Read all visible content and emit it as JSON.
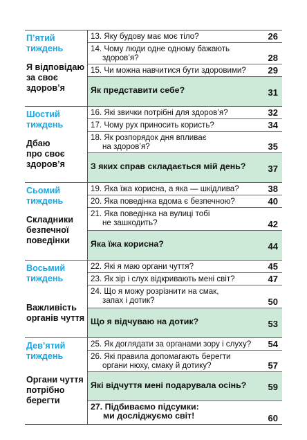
{
  "weeks": [
    {
      "title": [
        "П’ятий",
        "тиждень"
      ],
      "topic": [
        "Я відповідаю",
        "за своє",
        "здоров’я"
      ],
      "lessons": [
        {
          "text": [
            "13. Яку будову має моє тіло?"
          ],
          "page": "26"
        },
        {
          "text": [
            "14. Чому люди одне одному бажають",
            "здоров’я?"
          ],
          "page": "28"
        },
        {
          "text": [
            "15. Чи можна навчитися бути здоровими?"
          ],
          "page": "29"
        },
        {
          "text": [
            "Як представити себе?"
          ],
          "page": "31",
          "summary": true
        }
      ]
    },
    {
      "title": [
        "Шостий",
        "тиждень"
      ],
      "topic": [
        "Дбаю",
        "про своє",
        "здоров’я"
      ],
      "lessons": [
        {
          "text": [
            "16. Які звички потрібні для здоров’я?"
          ],
          "page": "32"
        },
        {
          "text": [
            "17. Чому рух приносить користь?"
          ],
          "page": "34"
        },
        {
          "text": [
            "18. Як розпорядок дня впливає",
            "на здоров’я?"
          ],
          "page": "35"
        },
        {
          "text": [
            "З яких справ складається мій день?"
          ],
          "page": "37",
          "summary": true
        }
      ]
    },
    {
      "title": [
        "Сьомий",
        "тиждень"
      ],
      "topic": [
        "Складники",
        "безпечної",
        "поведінки"
      ],
      "lessons": [
        {
          "text": [
            "19. Яка їжа корисна, а яка — шкідлива?"
          ],
          "page": "38"
        },
        {
          "text": [
            "20. Яка поведінка вдома є безпечною?"
          ],
          "page": "40"
        },
        {
          "text": [
            "21. Яка поведінка на вулиці тобі",
            "не зашкодить?"
          ],
          "page": "42"
        },
        {
          "text": [
            "Яка їжа корисна?"
          ],
          "page": "44",
          "summary": true
        }
      ]
    },
    {
      "title": [
        "Восьмий",
        "тиждень"
      ],
      "topic": [
        "Важливість",
        "органів чуття"
      ],
      "lessons": [
        {
          "text": [
            "22. Які я маю органи чуття?"
          ],
          "page": "45"
        },
        {
          "text": [
            "23. Як зір і слух відкривають мені світ?"
          ],
          "page": "47"
        },
        {
          "text": [
            "24. Що я можу розрізнити на смак,",
            "запах і дотик?"
          ],
          "page": "50"
        },
        {
          "text": [
            "Що я відчуваю на дотик?"
          ],
          "page": "53",
          "summary": true
        }
      ]
    },
    {
      "title": [
        "Дев’ятий",
        "тиждень"
      ],
      "topic": [
        "Органи чуття",
        "потрібно",
        "берегти"
      ],
      "lessons": [
        {
          "text": [
            "25. Як доглядати за органами зору і слуху?"
          ],
          "page": "54"
        },
        {
          "text": [
            "26. Які правила допомагають берегти",
            "органи нюху, смаку й дотику?"
          ],
          "page": "57"
        },
        {
          "text": [
            "Які відчуття мені подарувала осінь?"
          ],
          "page": "59",
          "summary": true
        },
        {
          "text": [
            "27. Підбиваємо підсумки:",
            "ми досліджуємо світ!"
          ],
          "page": "60",
          "final": true
        }
      ]
    }
  ]
}
